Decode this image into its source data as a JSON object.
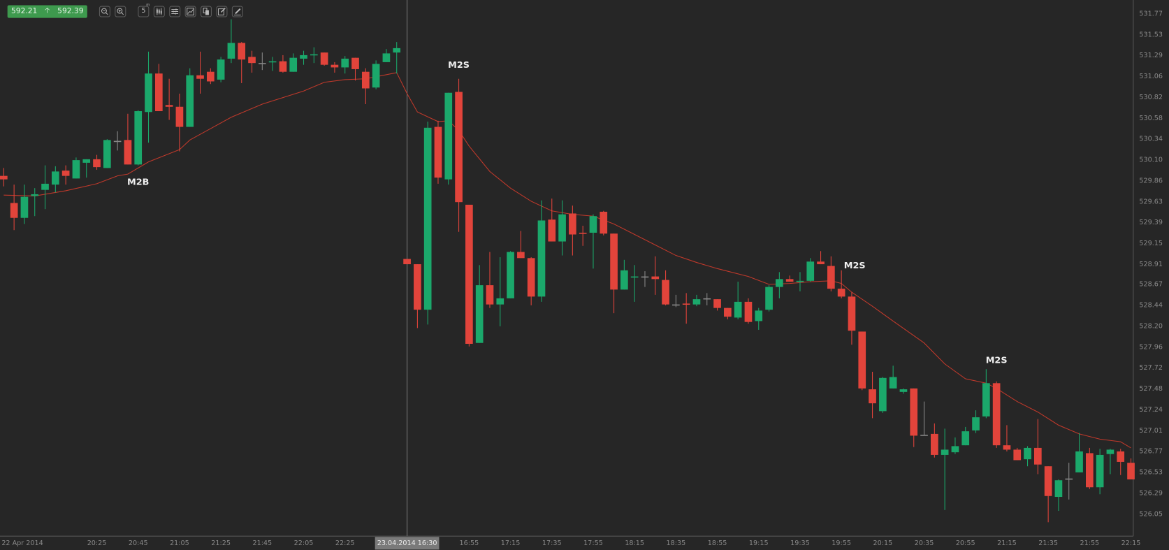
{
  "toolbar": {
    "bid": "592.21",
    "ask": "592.39",
    "direction_icon": "arrow-up-icon",
    "timeframe": "5",
    "timeframe_unit": "m",
    "icons": [
      "zoom-out-icon",
      "zoom-in-icon",
      "timeframe-icon",
      "candlestick-type-icon",
      "settings-sliders-icon",
      "indicator-chart-icon",
      "copy-icon",
      "edit-icon",
      "draw-icon"
    ]
  },
  "colors": {
    "background": "#262626",
    "up": "#1ba86b",
    "down": "#e2443b",
    "ma": "#c0392b",
    "quote_box": "#3e9a4e"
  },
  "chart_data": {
    "type": "candlestick",
    "ylim": [
      526.05,
      531.77
    ],
    "price_ticks": [
      "531.77",
      "531.53",
      "531.29",
      "531.06",
      "530.82",
      "530.58",
      "530.34",
      "530.10",
      "529.86",
      "529.63",
      "529.39",
      "529.15",
      "528.91",
      "528.67",
      "528.44",
      "528.20",
      "527.96",
      "527.72",
      "527.48",
      "527.24",
      "527.01",
      "526.77",
      "526.53",
      "526.29",
      "526.05"
    ],
    "time_labels": {
      "session1": [
        {
          "i": 0,
          "t": "22 Apr 2014"
        },
        {
          "i": 9,
          "t": "20:25"
        },
        {
          "i": 13,
          "t": "20:45"
        },
        {
          "i": 17,
          "t": "21:05"
        },
        {
          "i": 21,
          "t": "21:25"
        },
        {
          "i": 25,
          "t": "21:45"
        },
        {
          "i": 29,
          "t": "22:05"
        },
        {
          "i": 33,
          "t": "22:25"
        }
      ],
      "session2": [
        {
          "i": 6,
          "t": "16:55"
        },
        {
          "i": 10,
          "t": "17:15"
        },
        {
          "i": 14,
          "t": "17:35"
        },
        {
          "i": 18,
          "t": "17:55"
        },
        {
          "i": 22,
          "t": "18:15"
        },
        {
          "i": 26,
          "t": "18:35"
        },
        {
          "i": 30,
          "t": "18:55"
        },
        {
          "i": 34,
          "t": "19:15"
        },
        {
          "i": 38,
          "t": "19:35"
        },
        {
          "i": 42,
          "t": "19:55"
        },
        {
          "i": 46,
          "t": "20:15"
        },
        {
          "i": 50,
          "t": "20:35"
        },
        {
          "i": 54,
          "t": "20:55"
        },
        {
          "i": 58,
          "t": "21:15"
        },
        {
          "i": 62,
          "t": "21:35"
        },
        {
          "i": 66,
          "t": "21:55"
        },
        {
          "i": 70,
          "t": "22:15"
        }
      ]
    },
    "crosshair_label": "23.04.2014 16:30",
    "candles_ohlc_session1": [
      [
        529.93,
        530.02,
        529.81,
        529.89
      ],
      [
        529.62,
        529.83,
        529.31,
        529.45
      ],
      [
        529.45,
        529.83,
        529.38,
        529.69
      ],
      [
        529.7,
        529.79,
        529.47,
        529.72
      ],
      [
        529.77,
        530.05,
        529.55,
        529.84
      ],
      [
        529.83,
        530.04,
        529.74,
        529.98
      ],
      [
        529.99,
        530.05,
        529.83,
        529.93
      ],
      [
        529.9,
        530.14,
        529.9,
        530.11
      ],
      [
        530.08,
        530.12,
        529.91,
        530.12
      ],
      [
        530.12,
        530.17,
        530.0,
        530.03
      ],
      [
        530.02,
        530.35,
        530.02,
        530.34
      ],
      [
        530.33,
        530.44,
        530.22,
        530.33
      ],
      [
        530.34,
        530.64,
        530.06,
        530.06
      ],
      [
        530.06,
        530.68,
        530.05,
        530.67
      ],
      [
        530.66,
        531.35,
        530.31,
        531.1
      ],
      [
        531.1,
        531.21,
        530.67,
        530.67
      ],
      [
        530.74,
        531.04,
        530.57,
        530.72
      ],
      [
        530.72,
        530.87,
        530.21,
        530.49
      ],
      [
        530.49,
        531.16,
        530.49,
        531.08
      ],
      [
        531.08,
        531.35,
        530.87,
        531.04
      ],
      [
        531.12,
        531.16,
        530.98,
        531.01
      ],
      [
        531.03,
        531.29,
        531.0,
        531.26
      ],
      [
        531.27,
        531.72,
        531.22,
        531.45
      ],
      [
        531.45,
        531.46,
        530.99,
        531.26
      ],
      [
        531.29,
        531.36,
        531.11,
        531.22
      ],
      [
        531.22,
        531.34,
        531.14,
        531.22
      ],
      [
        531.23,
        531.29,
        531.13,
        531.24
      ],
      [
        531.24,
        531.31,
        531.11,
        531.12
      ],
      [
        531.12,
        531.33,
        531.12,
        531.28
      ],
      [
        531.27,
        531.36,
        531.2,
        531.31
      ],
      [
        531.31,
        531.4,
        531.22,
        531.32
      ],
      [
        531.34,
        531.34,
        531.19,
        531.2
      ],
      [
        531.2,
        531.23,
        531.11,
        531.17
      ],
      [
        531.17,
        531.3,
        531.1,
        531.27
      ],
      [
        531.28,
        531.28,
        531.02,
        531.15
      ],
      [
        531.12,
        531.16,
        530.75,
        530.93
      ],
      [
        530.94,
        531.25,
        530.92,
        531.21
      ],
      [
        531.23,
        531.38,
        531.23,
        531.33
      ],
      [
        531.34,
        531.46,
        531.1,
        531.39
      ]
    ],
    "candles_ohlc_session2": [
      [
        528.98,
        528.98,
        528.92,
        528.92
      ],
      [
        528.92,
        528.92,
        528.19,
        528.4
      ],
      [
        528.4,
        530.55,
        528.23,
        530.48
      ],
      [
        530.49,
        530.56,
        529.84,
        529.91
      ],
      [
        529.89,
        530.88,
        529.83,
        530.88
      ],
      [
        530.89,
        531.04,
        529.29,
        529.63
      ],
      [
        529.6,
        529.6,
        527.98,
        528.01
      ],
      [
        528.02,
        528.91,
        528.02,
        528.68
      ],
      [
        528.68,
        529.06,
        528.42,
        528.46
      ],
      [
        528.46,
        529.0,
        528.21,
        528.53
      ],
      [
        528.53,
        529.07,
        528.53,
        529.06
      ],
      [
        529.06,
        529.3,
        529.0,
        528.99
      ],
      [
        528.99,
        529.0,
        528.45,
        528.55
      ],
      [
        528.55,
        529.65,
        528.49,
        529.42
      ],
      [
        529.43,
        529.67,
        529.18,
        529.18
      ],
      [
        529.18,
        529.65,
        529.02,
        529.49
      ],
      [
        529.5,
        529.59,
        529.02,
        529.26
      ],
      [
        529.28,
        529.36,
        529.13,
        529.27
      ],
      [
        529.28,
        529.49,
        528.87,
        529.47
      ],
      [
        529.52,
        529.53,
        529.25,
        529.27
      ],
      [
        529.27,
        529.27,
        528.36,
        528.63
      ],
      [
        528.63,
        528.97,
        528.63,
        528.85
      ],
      [
        528.77,
        528.91,
        528.49,
        528.78
      ],
      [
        528.78,
        528.84,
        528.66,
        528.78
      ],
      [
        528.78,
        529.01,
        528.57,
        528.75
      ],
      [
        528.74,
        528.85,
        528.45,
        528.46
      ],
      [
        528.46,
        528.57,
        528.43,
        528.46
      ],
      [
        528.47,
        528.59,
        528.24,
        528.46
      ],
      [
        528.46,
        528.57,
        528.44,
        528.52
      ],
      [
        528.53,
        528.59,
        528.45,
        528.53
      ],
      [
        528.52,
        528.52,
        528.39,
        528.42
      ],
      [
        528.42,
        528.42,
        528.29,
        528.32
      ],
      [
        528.31,
        528.72,
        528.29,
        528.49
      ],
      [
        528.49,
        528.53,
        528.24,
        528.26
      ],
      [
        528.27,
        528.42,
        528.17,
        528.39
      ],
      [
        528.4,
        528.68,
        528.38,
        528.66
      ],
      [
        528.66,
        528.83,
        528.53,
        528.75
      ],
      [
        528.75,
        528.79,
        528.72,
        528.72
      ],
      [
        528.72,
        528.83,
        528.61,
        528.73
      ],
      [
        528.73,
        528.99,
        528.72,
        528.95
      ],
      [
        528.95,
        529.07,
        528.92,
        528.92
      ],
      [
        528.9,
        529.01,
        528.61,
        528.64
      ],
      [
        528.64,
        528.85,
        528.53,
        528.55
      ],
      [
        528.55,
        528.6,
        528.0,
        528.16
      ],
      [
        528.15,
        528.15,
        527.48,
        527.5
      ],
      [
        527.49,
        527.69,
        527.16,
        527.33
      ],
      [
        527.24,
        527.63,
        527.22,
        527.62
      ],
      [
        527.5,
        527.76,
        527.5,
        527.63
      ],
      [
        527.46,
        527.5,
        527.44,
        527.49
      ],
      [
        527.5,
        527.5,
        526.83,
        526.96
      ],
      [
        526.97,
        527.35,
        526.96,
        526.97
      ],
      [
        526.98,
        527.1,
        526.71,
        526.74
      ],
      [
        526.74,
        527.04,
        526.11,
        526.8
      ],
      [
        526.77,
        526.94,
        526.75,
        526.84
      ],
      [
        526.85,
        527.06,
        526.85,
        527.01
      ],
      [
        527.02,
        527.25,
        526.99,
        527.17
      ],
      [
        527.18,
        527.72,
        527.16,
        527.56
      ],
      [
        527.56,
        527.58,
        526.82,
        526.85
      ],
      [
        526.85,
        527.08,
        526.78,
        526.8
      ],
      [
        526.8,
        526.82,
        526.68,
        526.68
      ],
      [
        526.69,
        526.84,
        526.61,
        526.82
      ],
      [
        526.82,
        527.15,
        526.52,
        526.63
      ],
      [
        526.61,
        526.61,
        525.97,
        526.27
      ],
      [
        526.26,
        526.46,
        526.1,
        526.45
      ],
      [
        526.47,
        526.65,
        526.23,
        526.47
      ],
      [
        526.54,
        526.99,
        526.54,
        526.78
      ],
      [
        526.76,
        526.82,
        526.35,
        526.37
      ],
      [
        526.37,
        526.81,
        526.29,
        526.74
      ],
      [
        526.75,
        526.81,
        526.52,
        526.8
      ],
      [
        526.78,
        526.81,
        526.51,
        526.66
      ],
      [
        526.65,
        526.7,
        526.46,
        526.46
      ]
    ],
    "moving_average_session1": [
      [
        0,
        529.71
      ],
      [
        3,
        529.7
      ],
      [
        6,
        529.76
      ],
      [
        9,
        529.84
      ],
      [
        11,
        529.93
      ],
      [
        12,
        529.95
      ],
      [
        14,
        530.09
      ],
      [
        17,
        530.23
      ],
      [
        18,
        530.34
      ],
      [
        20,
        530.47
      ],
      [
        22,
        530.6
      ],
      [
        25,
        530.75
      ],
      [
        29,
        530.9
      ],
      [
        31,
        531.0
      ],
      [
        33,
        531.03
      ],
      [
        35,
        531.04
      ],
      [
        38,
        531.11
      ]
    ],
    "moving_average_session2": [
      [
        0,
        530.87
      ],
      [
        1,
        530.66
      ],
      [
        3,
        530.55
      ],
      [
        4,
        530.56
      ],
      [
        5,
        530.45
      ],
      [
        6,
        530.27
      ],
      [
        8,
        529.98
      ],
      [
        10,
        529.79
      ],
      [
        12,
        529.64
      ],
      [
        14,
        529.53
      ],
      [
        16,
        529.49
      ],
      [
        18,
        529.47
      ],
      [
        20,
        529.38
      ],
      [
        22,
        529.26
      ],
      [
        24,
        529.14
      ],
      [
        26,
        529.02
      ],
      [
        28,
        528.94
      ],
      [
        30,
        528.87
      ],
      [
        33,
        528.78
      ],
      [
        35,
        528.69
      ],
      [
        37,
        528.7
      ],
      [
        39,
        528.72
      ],
      [
        41,
        528.73
      ],
      [
        42,
        528.7
      ],
      [
        43,
        528.6
      ],
      [
        45,
        528.44
      ],
      [
        47,
        528.27
      ],
      [
        50,
        528.02
      ],
      [
        52,
        527.78
      ],
      [
        54,
        527.61
      ],
      [
        56,
        527.56
      ],
      [
        57,
        527.5
      ],
      [
        59,
        527.35
      ],
      [
        61,
        527.23
      ],
      [
        63,
        527.08
      ],
      [
        65,
        526.98
      ],
      [
        67,
        526.92
      ],
      [
        69,
        526.89
      ],
      [
        70,
        526.82
      ]
    ],
    "annotations": [
      {
        "session": 1,
        "i": 13,
        "price": 529.86,
        "text": "M2B"
      },
      {
        "session": 2,
        "i": 5,
        "price": 531.2,
        "text": "M2S"
      },
      {
        "session": 2,
        "i": 43,
        "price": 528.91,
        "text": "M2S"
      },
      {
        "session": 2,
        "i": 57,
        "price": 527.82,
        "text": "M2S"
      }
    ]
  }
}
